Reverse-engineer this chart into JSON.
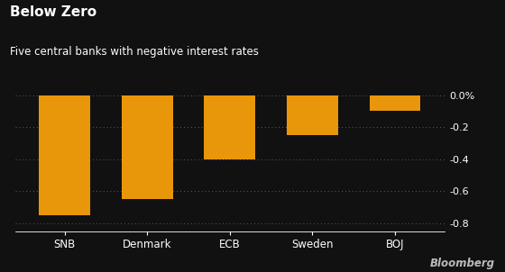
{
  "categories": [
    "SNB",
    "Denmark",
    "ECB",
    "Sweden",
    "BOJ"
  ],
  "values": [
    -0.75,
    -0.65,
    -0.4,
    -0.25,
    -0.1
  ],
  "bar_color": "#E8960A",
  "bg_color": "#111111",
  "text_color": "#ffffff",
  "title": "Below Zero",
  "subtitle": "Five central banks with negative interest rates",
  "title_fontsize": 11,
  "subtitle_fontsize": 8.5,
  "ylim": [
    -0.85,
    0.05
  ],
  "yticks": [
    0.0,
    -0.2,
    -0.4,
    -0.6,
    -0.8
  ],
  "ytick_labels": [
    "0.0%",
    "-0.2",
    "-0.4",
    "-0.6",
    "-0.8"
  ],
  "grid_color": "#666666",
  "bloomberg_color": "#bbbbbb",
  "bar_width": 0.62
}
